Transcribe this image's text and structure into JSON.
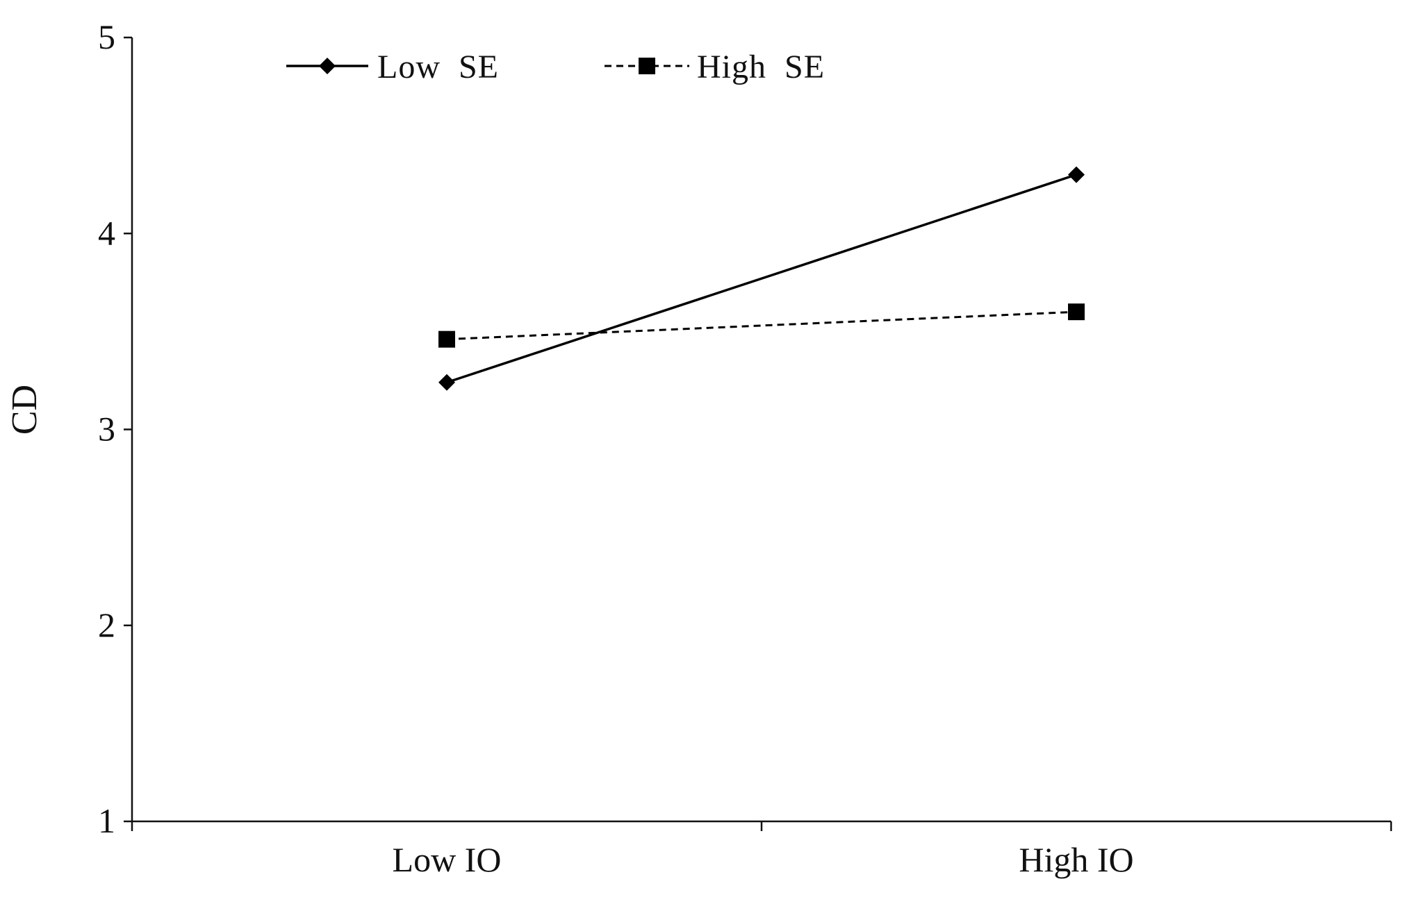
{
  "chart_data": {
    "type": "line",
    "title": "",
    "xlabel": "",
    "ylabel": "CD",
    "categories": [
      "Low IO",
      "High IO"
    ],
    "ylim": [
      1,
      5
    ],
    "yticks": [
      "1",
      "2",
      "3",
      "4",
      "5"
    ],
    "grid": false,
    "legend_position": "top-left",
    "series": [
      {
        "name": "Low  SE",
        "values": [
          3.24,
          4.3
        ],
        "line_style": "solid",
        "marker": "diamond",
        "color": "#000000"
      },
      {
        "name": "High  SE",
        "values": [
          3.46,
          3.6
        ],
        "line_style": "dashed",
        "marker": "square",
        "color": "#000000"
      }
    ]
  }
}
